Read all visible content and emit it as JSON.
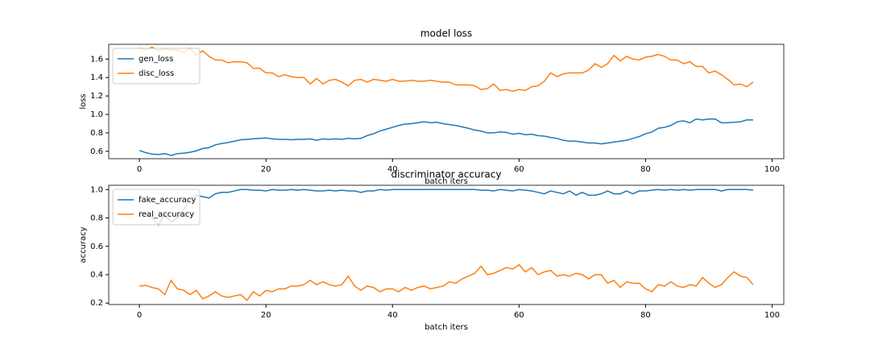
{
  "chart_data": [
    {
      "type": "line",
      "title": "model loss",
      "xlabel": "batch iters",
      "ylabel": "loss",
      "x": [
        0,
        1,
        2,
        3,
        4,
        5,
        6,
        7,
        8,
        9,
        10,
        11,
        12,
        13,
        14,
        15,
        16,
        17,
        18,
        19,
        20,
        21,
        22,
        23,
        24,
        25,
        26,
        27,
        28,
        29,
        30,
        31,
        32,
        33,
        34,
        35,
        36,
        37,
        38,
        39,
        40,
        41,
        42,
        43,
        44,
        45,
        46,
        47,
        48,
        49,
        50,
        51,
        52,
        53,
        54,
        55,
        56,
        57,
        58,
        59,
        60,
        61,
        62,
        63,
        64,
        65,
        66,
        67,
        68,
        69,
        70,
        71,
        72,
        73,
        74,
        75,
        76,
        77,
        78,
        79,
        80,
        81,
        82,
        83,
        84,
        85,
        86,
        87,
        88,
        89,
        90,
        91,
        92,
        93,
        94,
        95,
        96,
        97
      ],
      "series": [
        {
          "name": "gen_loss",
          "color": "#1f77b4",
          "values": [
            0.61,
            0.585,
            0.57,
            0.565,
            0.575,
            0.555,
            0.575,
            0.58,
            0.59,
            0.605,
            0.63,
            0.64,
            0.67,
            0.685,
            0.695,
            0.71,
            0.725,
            0.73,
            0.735,
            0.74,
            0.745,
            0.735,
            0.73,
            0.73,
            0.725,
            0.73,
            0.73,
            0.735,
            0.72,
            0.735,
            0.73,
            0.735,
            0.73,
            0.74,
            0.735,
            0.74,
            0.77,
            0.79,
            0.82,
            0.84,
            0.86,
            0.88,
            0.895,
            0.9,
            0.91,
            0.92,
            0.91,
            0.915,
            0.9,
            0.89,
            0.88,
            0.865,
            0.85,
            0.83,
            0.82,
            0.8,
            0.8,
            0.81,
            0.805,
            0.785,
            0.795,
            0.78,
            0.785,
            0.77,
            0.765,
            0.75,
            0.74,
            0.72,
            0.71,
            0.71,
            0.7,
            0.69,
            0.69,
            0.68,
            0.69,
            0.7,
            0.71,
            0.72,
            0.74,
            0.76,
            0.79,
            0.81,
            0.85,
            0.86,
            0.88,
            0.92,
            0.93,
            0.91,
            0.95,
            0.94,
            0.95,
            0.95,
            0.91,
            0.91,
            0.915,
            0.92,
            0.94,
            0.94
          ]
        },
        {
          "name": "disc_loss",
          "color": "#ff7f0e",
          "values": [
            1.72,
            1.7,
            1.73,
            1.69,
            1.71,
            1.7,
            1.7,
            1.67,
            1.72,
            1.64,
            1.69,
            1.63,
            1.59,
            1.59,
            1.56,
            1.57,
            1.57,
            1.56,
            1.5,
            1.5,
            1.45,
            1.45,
            1.41,
            1.43,
            1.41,
            1.4,
            1.4,
            1.33,
            1.39,
            1.33,
            1.37,
            1.38,
            1.35,
            1.31,
            1.37,
            1.38,
            1.35,
            1.38,
            1.37,
            1.36,
            1.38,
            1.36,
            1.36,
            1.37,
            1.36,
            1.36,
            1.37,
            1.36,
            1.35,
            1.35,
            1.32,
            1.32,
            1.32,
            1.31,
            1.27,
            1.28,
            1.33,
            1.26,
            1.27,
            1.25,
            1.27,
            1.26,
            1.3,
            1.31,
            1.36,
            1.45,
            1.41,
            1.44,
            1.45,
            1.45,
            1.45,
            1.48,
            1.55,
            1.51,
            1.55,
            1.64,
            1.58,
            1.63,
            1.6,
            1.59,
            1.62,
            1.63,
            1.65,
            1.63,
            1.59,
            1.59,
            1.55,
            1.57,
            1.52,
            1.52,
            1.45,
            1.47,
            1.43,
            1.38,
            1.32,
            1.33,
            1.3,
            1.35
          ]
        }
      ],
      "xlim": [
        -4.85,
        101.85
      ],
      "xticks": [
        0,
        20,
        40,
        60,
        80,
        100
      ],
      "ylim": [
        0.52,
        1.76
      ],
      "yticks": [
        0.6,
        0.8,
        {
          "value": 1,
          "label": "1.0"
        },
        1.2,
        1.4,
        1.6
      ],
      "legend": "upper left"
    },
    {
      "type": "line",
      "title": "discriminator accuracy",
      "xlabel": "batch iters",
      "ylabel": "accuracy",
      "x": [
        0,
        1,
        2,
        3,
        4,
        5,
        6,
        7,
        8,
        9,
        10,
        11,
        12,
        13,
        14,
        15,
        16,
        17,
        18,
        19,
        20,
        21,
        22,
        23,
        24,
        25,
        26,
        27,
        28,
        29,
        30,
        31,
        32,
        33,
        34,
        35,
        36,
        37,
        38,
        39,
        40,
        41,
        42,
        43,
        44,
        45,
        46,
        47,
        48,
        49,
        50,
        51,
        52,
        53,
        54,
        55,
        56,
        57,
        58,
        59,
        60,
        61,
        62,
        63,
        64,
        65,
        66,
        67,
        68,
        69,
        70,
        71,
        72,
        73,
        74,
        75,
        76,
        77,
        78,
        79,
        80,
        81,
        82,
        83,
        84,
        85,
        86,
        87,
        88,
        89,
        90,
        91,
        92,
        93,
        94,
        95,
        96,
        97
      ],
      "series": [
        {
          "name": "fake_accuracy",
          "color": "#1f77b4",
          "values": [
            0.85,
            0.83,
            0.8,
            0.75,
            0.82,
            0.77,
            0.8,
            0.86,
            0.93,
            0.96,
            0.95,
            0.94,
            0.97,
            0.98,
            0.98,
            0.99,
            1,
            1,
            0.995,
            0.995,
            0.99,
            1,
            0.995,
            0.995,
            1,
            0.995,
            1,
            0.995,
            0.99,
            0.99,
            0.995,
            0.99,
            0.995,
            0.99,
            0.99,
            0.98,
            0.99,
            0.99,
            1,
            0.995,
            1,
            1,
            1,
            1,
            1,
            1,
            1,
            1,
            1,
            1,
            1,
            1,
            1,
            1,
            0.995,
            0.995,
            0.99,
            1,
            0.995,
            0.99,
            1,
            0.995,
            0.99,
            0.98,
            0.97,
            0.99,
            0.98,
            0.97,
            0.99,
            0.96,
            0.98,
            0.96,
            0.96,
            0.97,
            0.99,
            0.97,
            0.97,
            0.99,
            0.97,
            0.99,
            0.99,
            0.995,
            1,
            0.995,
            1,
            0.995,
            1,
            0.995,
            1,
            1,
            1,
            1,
            0.99,
            1,
            1,
            1,
            1,
            0.995
          ]
        },
        {
          "name": "real_accuracy",
          "color": "#ff7f0e",
          "values": [
            0.32,
            0.325,
            0.31,
            0.3,
            0.26,
            0.36,
            0.3,
            0.29,
            0.26,
            0.29,
            0.23,
            0.25,
            0.28,
            0.25,
            0.24,
            0.25,
            0.26,
            0.22,
            0.28,
            0.25,
            0.29,
            0.28,
            0.3,
            0.3,
            0.32,
            0.32,
            0.33,
            0.36,
            0.33,
            0.35,
            0.33,
            0.32,
            0.33,
            0.39,
            0.32,
            0.29,
            0.32,
            0.31,
            0.28,
            0.3,
            0.3,
            0.28,
            0.31,
            0.29,
            0.31,
            0.32,
            0.3,
            0.31,
            0.32,
            0.35,
            0.34,
            0.37,
            0.39,
            0.41,
            0.46,
            0.4,
            0.41,
            0.43,
            0.45,
            0.44,
            0.47,
            0.42,
            0.45,
            0.4,
            0.42,
            0.43,
            0.39,
            0.4,
            0.39,
            0.41,
            0.4,
            0.37,
            0.4,
            0.4,
            0.34,
            0.36,
            0.31,
            0.35,
            0.34,
            0.34,
            0.3,
            0.28,
            0.33,
            0.32,
            0.35,
            0.32,
            0.31,
            0.33,
            0.32,
            0.38,
            0.34,
            0.31,
            0.33,
            0.38,
            0.42,
            0.39,
            0.38,
            0.33
          ]
        }
      ],
      "xlim": [
        -4.85,
        101.85
      ],
      "xticks": [
        0,
        20,
        40,
        60,
        80,
        100
      ],
      "ylim": [
        0.19,
        1.03
      ],
      "yticks": [
        0.2,
        0.4,
        0.6,
        0.8,
        {
          "value": 1,
          "label": "1.0"
        }
      ],
      "legend": "upper left"
    }
  ]
}
